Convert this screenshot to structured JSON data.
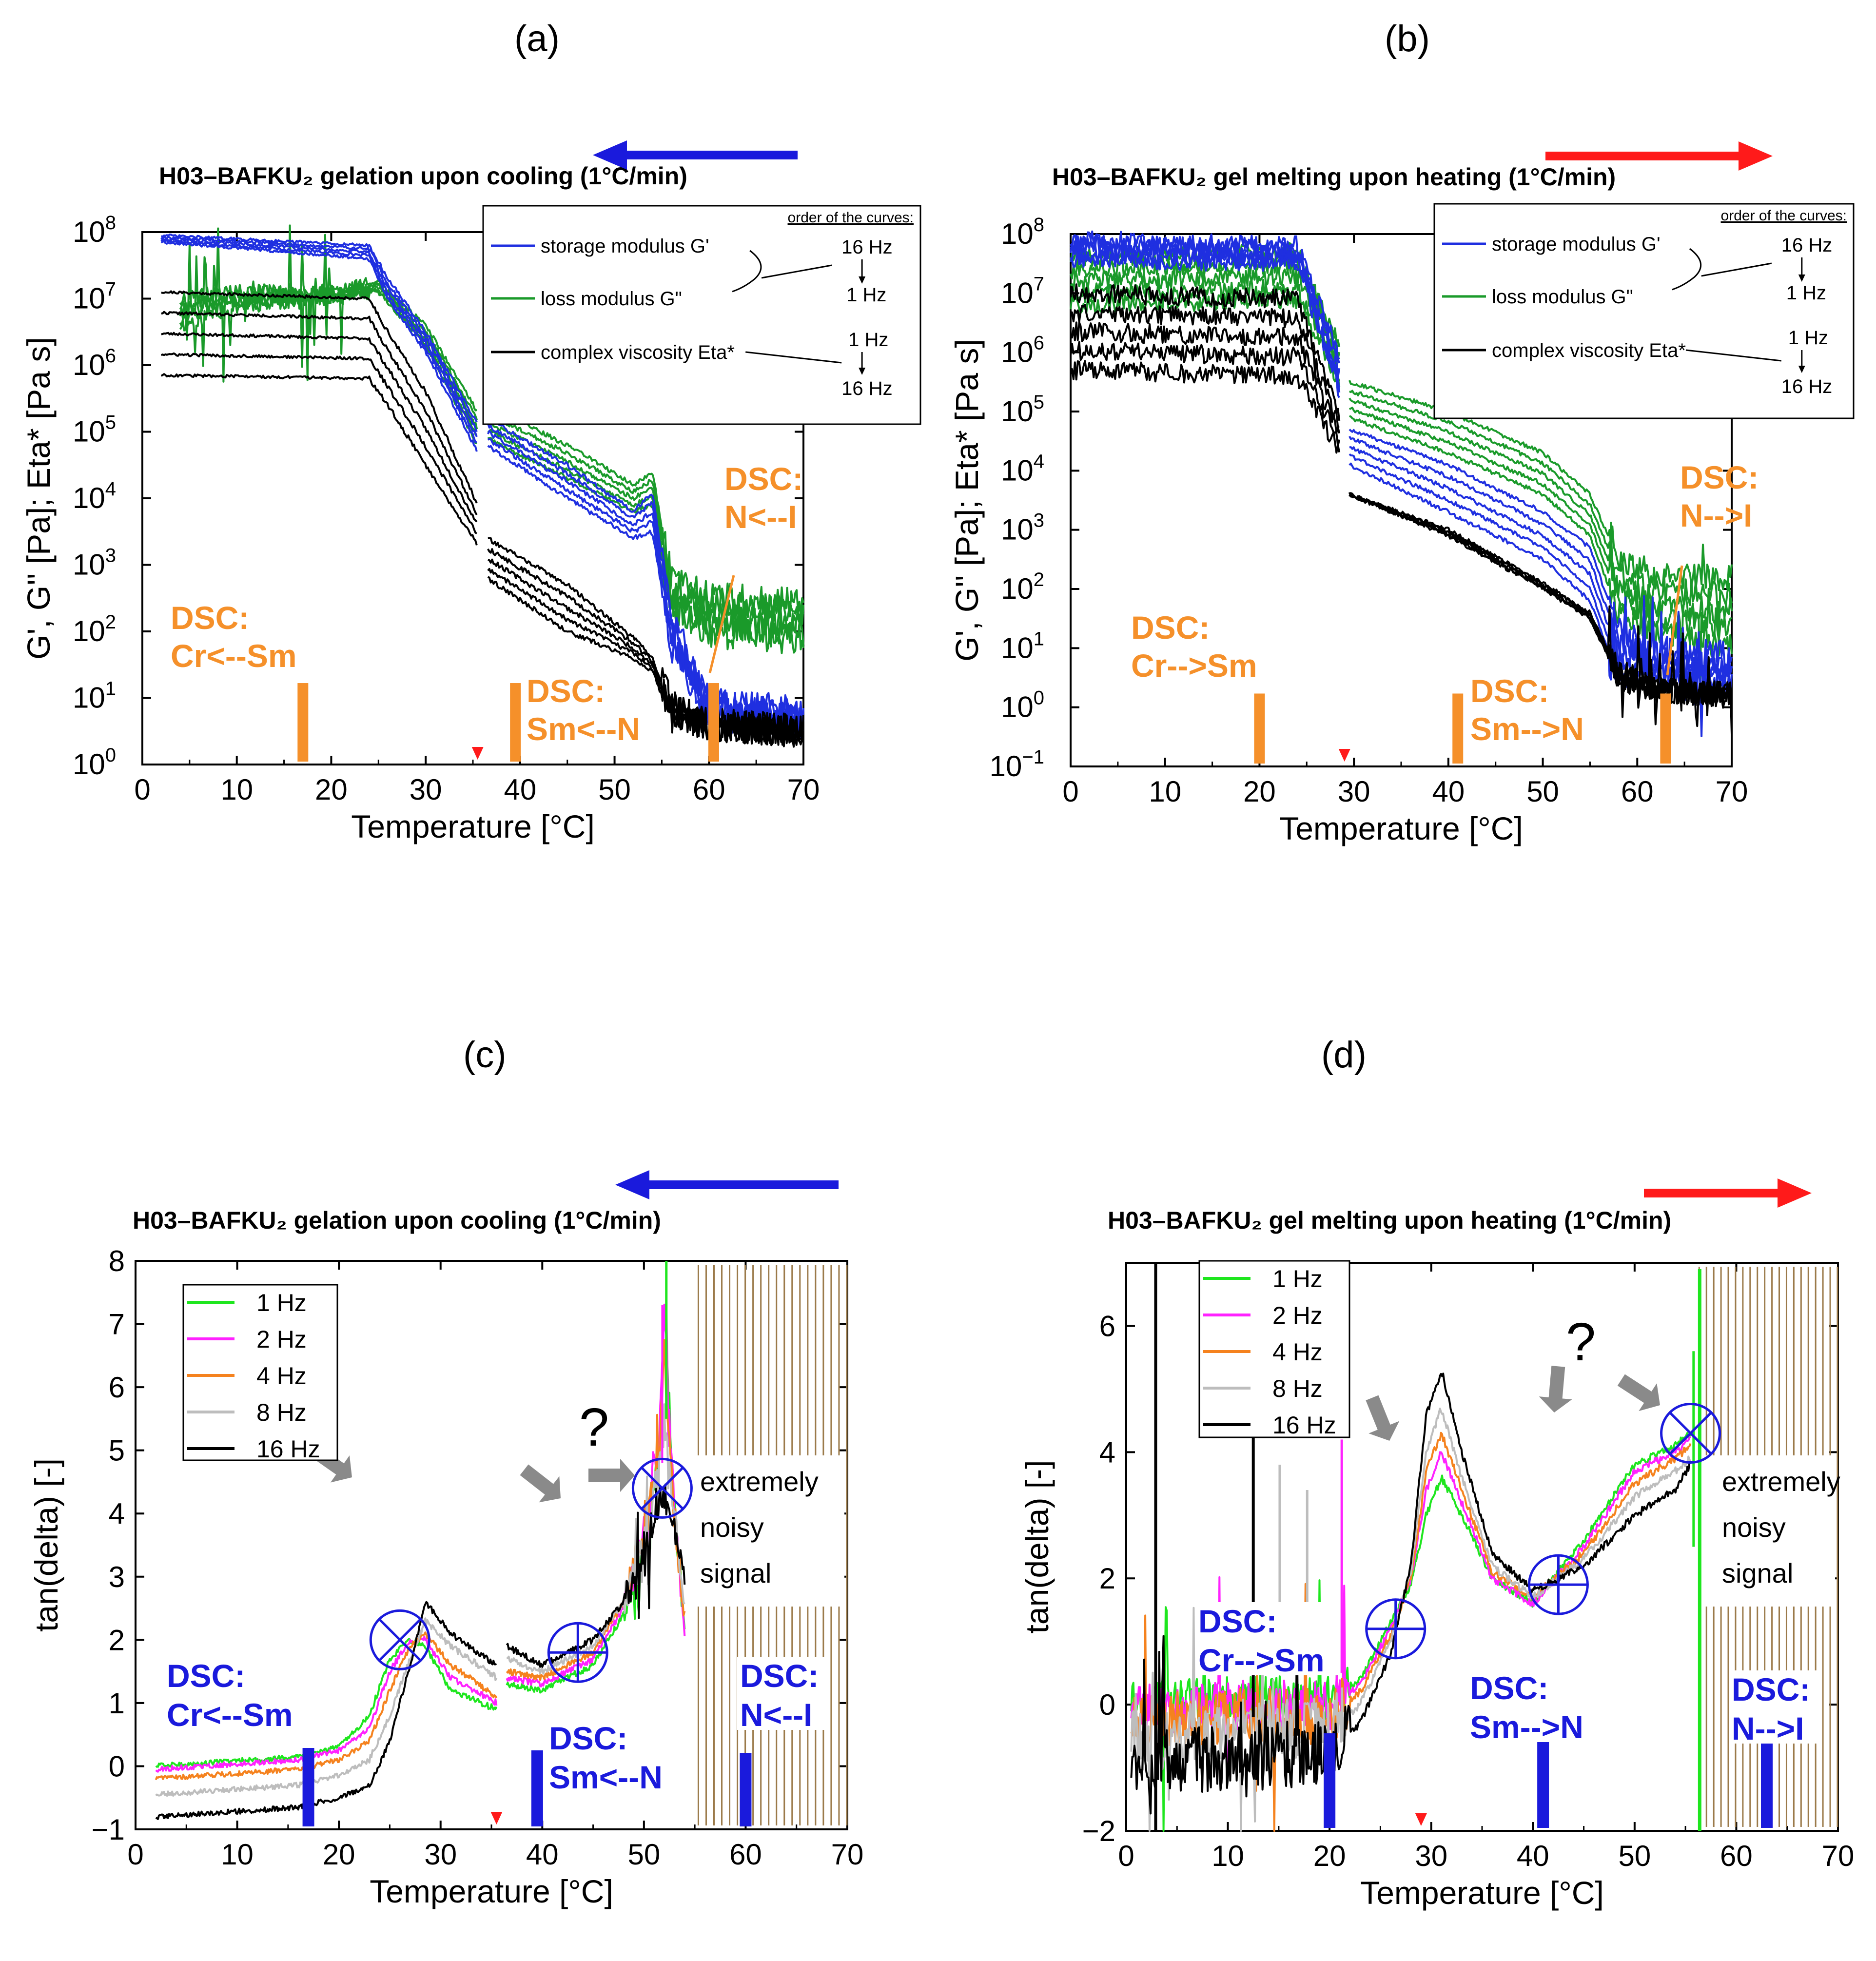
{
  "panel_labels": [
    "(a)",
    "(b)",
    "(c)",
    "(d)"
  ],
  "colors": {
    "storage": "#1f2fe0",
    "loss": "#1a9a2a",
    "viscosity": "#000000",
    "orange": "#f5902a",
    "dsc_blue": "#1a1adc",
    "cool_arrow": "#1a1adc",
    "heat_arrow": "#ff1a1a",
    "hz1": "#1ee61e",
    "hz2": "#ff22ff",
    "hz4": "#f5821e",
    "hz8": "#bdbdbd",
    "hz16": "#000000",
    "gray_arrow": "#8a8a8a",
    "noise_lines": "#9b7a4a",
    "tg_marker": "#ff1a1a"
  },
  "legend_ab": {
    "header": "order of the curves:",
    "storage": "storage modulus G'",
    "loss": "loss modulus G\"",
    "viscosity": "complex viscosity Eta*",
    "hz16": "16 Hz",
    "hz1": "1 Hz"
  },
  "legend_cd": [
    "1 Hz",
    "2 Hz",
    "4 Hz",
    "8 Hz",
    "16 Hz"
  ],
  "note_lines": [
    "extremely",
    "noisy",
    "signal"
  ],
  "question_mark": "?",
  "chart_data": [
    {
      "id": "a",
      "type": "line",
      "title": "H03–BAFKU₂ gelation upon cooling (1°C/min)",
      "direction": "cooling",
      "xlabel": "Temperature [°C]",
      "ylabel": "G', G'' [Pa]; Eta* [Pa s]",
      "yscale": "log",
      "xlim": [
        0,
        70
      ],
      "ylim_exp": [
        0,
        8
      ],
      "xticks": [
        "0",
        "10",
        "20",
        "30",
        "40",
        "50",
        "60",
        "70"
      ],
      "yticks": [
        {
          "b": "10",
          "e": "0"
        },
        {
          "b": "10",
          "e": "1"
        },
        {
          "b": "10",
          "e": "2"
        },
        {
          "b": "10",
          "e": "3"
        },
        {
          "b": "10",
          "e": "4"
        },
        {
          "b": "10",
          "e": "5"
        },
        {
          "b": "10",
          "e": "6"
        },
        {
          "b": "10",
          "e": "7"
        },
        {
          "b": "10",
          "e": "8"
        }
      ],
      "frequencies_hz": [
        1,
        2,
        4,
        8,
        16
      ],
      "dsc": [
        {
          "lines": [
            "DSC:",
            "Cr<--Sm"
          ],
          "x": 17
        },
        {
          "lines": [
            "DSC:",
            "Sm<--N"
          ],
          "x": 39.5
        },
        {
          "lines": [
            "DSC:",
            "N<--I"
          ],
          "x": 60.5
        }
      ],
      "tg_marker_x": 35.5,
      "gap": [
        35.5,
        36.5
      ],
      "storage_modulus": {
        "x": [
          2,
          24,
          26,
          30,
          35.5,
          36.5,
          45,
          52,
          54,
          56,
          60,
          70
        ],
        "log_1hz": [
          7.85,
          7.6,
          7.0,
          6.2,
          4.7,
          4.8,
          4.0,
          3.4,
          3.5,
          1.8,
          0.7,
          0.6
        ],
        "log_16hz": [
          7.95,
          7.8,
          7.3,
          6.5,
          5.1,
          5.2,
          4.5,
          3.8,
          4.1,
          2.2,
          0.9,
          0.8
        ]
      },
      "loss_modulus": {
        "x": [
          4,
          10,
          20,
          25,
          30,
          35.5,
          36.5,
          45,
          52,
          54,
          56,
          60,
          70
        ],
        "log_1hz": [
          6.6,
          6.9,
          7.0,
          7.1,
          6.3,
          4.8,
          4.9,
          4.3,
          3.8,
          3.9,
          2.3,
          2.0,
          1.9
        ],
        "log_16hz": [
          7.0,
          7.1,
          7.1,
          7.25,
          6.6,
          5.3,
          5.4,
          4.8,
          4.2,
          4.4,
          2.8,
          2.5,
          2.4
        ]
      },
      "complex_viscosity": {
        "x": [
          2,
          24,
          26,
          30,
          35.5,
          36.5,
          45,
          52,
          54,
          56,
          60,
          70
        ],
        "log_1hz": [
          7.1,
          7.0,
          6.5,
          5.6,
          3.9,
          3.4,
          2.7,
          1.9,
          1.6,
          0.9,
          0.6,
          0.5
        ],
        "log_16hz": [
          5.85,
          5.8,
          5.4,
          4.5,
          3.3,
          2.8,
          2.0,
          1.6,
          1.4,
          0.7,
          0.6,
          0.5
        ]
      }
    },
    {
      "id": "b",
      "type": "line",
      "title": "H03–BAFKU₂ gel melting upon heating (1°C/min)",
      "direction": "heating",
      "xlabel": "Temperature [°C]",
      "ylabel": "G', G'' [Pa]; Eta* [Pa s]",
      "yscale": "log",
      "xlim": [
        0,
        70
      ],
      "ylim_exp": [
        -1,
        8
      ],
      "xticks": [
        "0",
        "10",
        "20",
        "30",
        "40",
        "50",
        "60",
        "70"
      ],
      "yticks": [
        {
          "b": "10",
          "e": "−1"
        },
        {
          "b": "10",
          "e": "0"
        },
        {
          "b": "10",
          "e": "1"
        },
        {
          "b": "10",
          "e": "2"
        },
        {
          "b": "10",
          "e": "3"
        },
        {
          "b": "10",
          "e": "4"
        },
        {
          "b": "10",
          "e": "5"
        },
        {
          "b": "10",
          "e": "6"
        },
        {
          "b": "10",
          "e": "7"
        },
        {
          "b": "10",
          "e": "8"
        }
      ],
      "frequencies_hz": [
        1,
        2,
        4,
        8,
        16
      ],
      "dsc": [
        {
          "lines": [
            "DSC:",
            "Cr-->Sm"
          ],
          "x": 20
        },
        {
          "lines": [
            "DSC:",
            "Sm-->N"
          ],
          "x": 41
        },
        {
          "lines": [
            "DSC:",
            "N-->I"
          ],
          "x": 63
        }
      ],
      "tg_marker_x": 29,
      "gap": [
        28.5,
        29.5
      ],
      "storage_modulus": {
        "x": [
          0,
          24,
          28.5,
          29.5,
          40,
          50,
          55,
          58,
          62,
          70
        ],
        "log_1hz": [
          7.6,
          7.5,
          5.3,
          4.1,
          3.3,
          2.5,
          1.8,
          0.5,
          0.5,
          0.4
        ],
        "log_16hz": [
          7.9,
          7.8,
          5.9,
          4.7,
          4.1,
          3.3,
          2.7,
          1.3,
          1.0,
          0.9
        ]
      },
      "loss_modulus": {
        "x": [
          0,
          24,
          28.5,
          29.5,
          40,
          50,
          55,
          58,
          62,
          70
        ],
        "log_1hz": [
          6.8,
          6.9,
          5.5,
          4.9,
          4.3,
          3.6,
          2.9,
          1.6,
          1.3,
          1.0
        ],
        "log_16hz": [
          7.6,
          7.7,
          6.1,
          5.5,
          5.0,
          4.3,
          3.6,
          2.5,
          2.2,
          2.2
        ]
      },
      "complex_viscosity": {
        "x": [
          0,
          24,
          28.5,
          29.5,
          40,
          50,
          55,
          58,
          62,
          70
        ],
        "log_1hz": [
          7.0,
          6.9,
          4.9,
          3.6,
          3.0,
          2.1,
          1.6,
          0.6,
          0.3,
          0.2
        ],
        "log_16hz": [
          5.7,
          5.6,
          4.3,
          3.6,
          2.9,
          2.0,
          1.5,
          0.5,
          0.3,
          0.2
        ]
      }
    },
    {
      "id": "c",
      "type": "line",
      "title": "H03–BAFKU₂ gelation upon cooling (1°C/min)",
      "direction": "cooling",
      "xlabel": "Temperature [°C]",
      "ylabel": "tan(delta) [-]",
      "xlim": [
        0,
        70
      ],
      "ylim": [
        -1,
        8
      ],
      "xticks": [
        "0",
        "10",
        "20",
        "30",
        "40",
        "50",
        "60",
        "70"
      ],
      "yticks": [
        "−1",
        "0",
        "1",
        "2",
        "3",
        "4",
        "5",
        "6",
        "7",
        "8"
      ],
      "dsc": [
        {
          "lines": [
            "DSC:",
            "Cr<--Sm"
          ],
          "x": 17
        },
        {
          "lines": [
            "DSC:",
            "Sm<--N"
          ],
          "x": 39.5
        },
        {
          "lines": [
            "DSC:",
            "N<--I"
          ],
          "x": 60
        }
      ],
      "tg_marker_x": 35.5,
      "gap": [
        35.5,
        36.5
      ],
      "noise_region_x": [
        55,
        70
      ],
      "circle_marks": [
        {
          "x": 26,
          "y": 2.0,
          "mark": "x"
        },
        {
          "x": 43.5,
          "y": 1.8,
          "mark": "+"
        },
        {
          "x": 51.8,
          "y": 4.4,
          "mark": "x"
        }
      ],
      "series": [
        {
          "name": "1 Hz",
          "x": [
            2,
            16,
            20,
            23,
            25,
            27,
            28.5,
            31,
            35.5,
            36.5,
            40,
            45,
            48,
            50,
            51.5,
            52,
            53,
            54
          ],
          "y": [
            0.0,
            0.15,
            0.3,
            0.8,
            1.7,
            2.0,
            1.9,
            1.2,
            0.9,
            1.3,
            1.2,
            1.6,
            2.4,
            3.5,
            5.0,
            7.5,
            4.0,
            2.1
          ]
        },
        {
          "name": "2 Hz",
          "x": [
            2,
            16,
            20,
            23,
            25,
            27,
            28.5,
            31,
            35.5,
            36.5,
            40,
            45,
            48,
            50,
            51.5,
            52,
            53,
            54
          ],
          "y": [
            -0.05,
            0.1,
            0.25,
            0.6,
            1.5,
            2.0,
            2.0,
            1.4,
            1.0,
            1.4,
            1.3,
            1.7,
            2.5,
            3.6,
            5.2,
            7.2,
            4.0,
            2.2
          ]
        },
        {
          "name": "4 Hz",
          "x": [
            2,
            16,
            20,
            23,
            25,
            27,
            28.5,
            31,
            35.5,
            36.5,
            40,
            45,
            48,
            50,
            51.5,
            52,
            53,
            54
          ],
          "y": [
            -0.2,
            -0.05,
            0.1,
            0.4,
            1.2,
            1.9,
            2.1,
            1.6,
            1.1,
            1.5,
            1.4,
            1.8,
            2.6,
            3.6,
            5.0,
            6.5,
            4.0,
            2.3
          ]
        },
        {
          "name": "8 Hz",
          "x": [
            2,
            16,
            20,
            23,
            25,
            27,
            28.5,
            31,
            35.5,
            36.5,
            40,
            45,
            48,
            50,
            51.5,
            52,
            53,
            54
          ],
          "y": [
            -0.45,
            -0.3,
            -0.15,
            0.1,
            0.8,
            1.7,
            2.3,
            1.9,
            1.4,
            1.7,
            1.5,
            1.9,
            2.6,
            3.5,
            4.8,
            5.5,
            4.0,
            2.5
          ]
        },
        {
          "name": "16 Hz",
          "x": [
            2,
            16,
            20,
            23,
            25,
            27,
            28.5,
            31,
            35.5,
            36.5,
            40,
            45,
            48,
            50,
            51.5,
            52,
            53,
            54
          ],
          "y": [
            -0.8,
            -0.65,
            -0.5,
            -0.3,
            0.4,
            1.6,
            2.6,
            2.1,
            1.6,
            1.9,
            1.6,
            2.0,
            2.6,
            3.3,
            4.2,
            4.3,
            3.7,
            3.0
          ]
        }
      ]
    },
    {
      "id": "d",
      "type": "line",
      "title": "H03–BAFKU₂ gel melting upon heating  (1°C/min)",
      "direction": "heating",
      "xlabel": "Temperature [°C]",
      "ylabel": "tan(delta) [-]",
      "xlim": [
        0,
        70
      ],
      "ylim": [
        -2,
        7
      ],
      "xticks": [
        "0",
        "10",
        "20",
        "30",
        "40",
        "50",
        "60",
        "70"
      ],
      "yticks": [
        "−2",
        "0",
        "2",
        "4",
        "6"
      ],
      "dsc": [
        {
          "lines": [
            "DSC:",
            "Cr-->Sm"
          ],
          "x": 20
        },
        {
          "lines": [
            "DSC:",
            "Sm-->N"
          ],
          "x": 41
        },
        {
          "lines": [
            "DSC:",
            "N-->I"
          ],
          "x": 63
        }
      ],
      "tg_marker_x": 29,
      "noise_region_x": [
        56,
        70
      ],
      "circle_marks": [
        {
          "x": 26.5,
          "y": 1.2,
          "mark": "+"
        },
        {
          "x": 42.5,
          "y": 1.9,
          "mark": "+"
        },
        {
          "x": 55.5,
          "y": 4.3,
          "mark": "x"
        }
      ],
      "series": [
        {
          "name": "1 Hz",
          "x": [
            0.5,
            10,
            20,
            23,
            26,
            28,
            29.5,
            31,
            33,
            36,
            40,
            45,
            50,
            54,
            55.5
          ],
          "y": [
            0.0,
            0.1,
            0.1,
            0.4,
            1.3,
            1.9,
            3.0,
            3.6,
            3.0,
            2.0,
            1.6,
            2.6,
            3.8,
            4.1,
            4.3
          ]
        },
        {
          "name": "2 Hz",
          "x": [
            0.5,
            10,
            20,
            23,
            26,
            28,
            29.5,
            31,
            33,
            36,
            40,
            45,
            50,
            54,
            55.5
          ],
          "y": [
            -0.1,
            0.0,
            0.0,
            0.3,
            1.2,
            2.0,
            3.4,
            4.0,
            3.2,
            2.0,
            1.6,
            2.5,
            3.7,
            4.0,
            4.2
          ]
        },
        {
          "name": "4 Hz",
          "x": [
            0.5,
            10,
            20,
            23,
            26,
            28,
            29.5,
            31,
            33,
            36,
            40,
            45,
            50,
            54,
            55.5
          ],
          "y": [
            -0.3,
            -0.2,
            -0.2,
            0.2,
            1.1,
            2.0,
            3.7,
            4.3,
            3.4,
            2.1,
            1.7,
            2.4,
            3.5,
            3.9,
            4.1
          ]
        },
        {
          "name": "8 Hz",
          "x": [
            0.5,
            10,
            20,
            23,
            26,
            28,
            29.5,
            31,
            33,
            36,
            40,
            45,
            50,
            54,
            55.5
          ],
          "y": [
            -0.6,
            -0.4,
            -0.4,
            0.0,
            1.0,
            2.1,
            4.0,
            4.7,
            3.6,
            2.2,
            1.7,
            2.3,
            3.3,
            3.7,
            3.9
          ]
        },
        {
          "name": "16 Hz",
          "x": [
            0.5,
            10,
            20,
            23,
            26,
            28,
            29.5,
            31,
            33,
            36,
            40,
            45,
            50,
            54,
            55.5
          ],
          "y": [
            -1.0,
            -0.8,
            -0.8,
            -0.3,
            0.8,
            2.2,
            4.6,
            5.3,
            4.0,
            2.4,
            1.8,
            2.2,
            3.0,
            3.4,
            3.8
          ]
        }
      ]
    }
  ]
}
